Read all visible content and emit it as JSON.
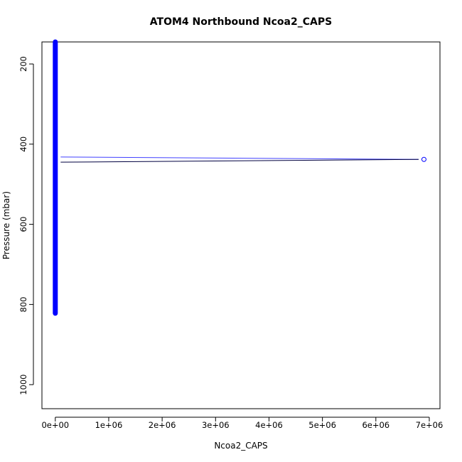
{
  "chart_data": {
    "type": "scatter",
    "title": "ATOM4 Northbound Ncoa2_CAPS",
    "xlabel": "Ncoa2_CAPS",
    "ylabel": "Pressure (mbar)",
    "xlim": [
      -250000,
      7200000
    ],
    "ylim": [
      1060,
      145
    ],
    "y_reversed": true,
    "x_ticks": [
      0,
      1000000,
      2000000,
      3000000,
      4000000,
      5000000,
      6000000,
      7000000
    ],
    "x_tick_labels": [
      "0e+00",
      "1e+06",
      "2e+06",
      "3e+06",
      "4e+06",
      "5e+06",
      "6e+06",
      "7e+06"
    ],
    "y_ticks": [
      200,
      400,
      600,
      800,
      1000
    ],
    "y_tick_labels": [
      "200",
      "400",
      "600",
      "800",
      "1000"
    ],
    "dense_band": {
      "x": 0,
      "pressure_from": 145,
      "pressure_to": 822,
      "color": "#0000ff"
    },
    "outlier": {
      "x": 6900000,
      "pressure": 438,
      "color": "#0000ff"
    },
    "outlier_lines": [
      {
        "x": [
          100000,
          6800000
        ],
        "pressure": [
          432,
          438
        ],
        "color": "#4040ff"
      },
      {
        "x": [
          100000,
          6800000
        ],
        "pressure": [
          445,
          438
        ],
        "color": "#000040"
      }
    ],
    "grid": false,
    "colors": {
      "points": "#0000ff",
      "axes": "#000000"
    }
  }
}
